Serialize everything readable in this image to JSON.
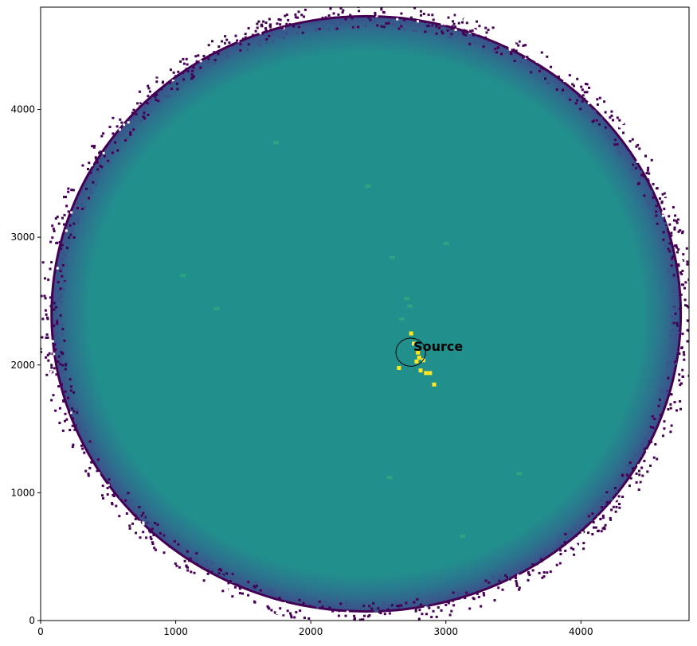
{
  "chart_data": {
    "type": "heatmap",
    "title": "",
    "xlabel": "",
    "ylabel": "",
    "xlim": [
      0,
      4800
    ],
    "ylim": [
      0,
      4800
    ],
    "colormap": "viridis",
    "grid": false,
    "x_ticks": [
      {
        "value": 0,
        "label": "0"
      },
      {
        "value": 1000,
        "label": "1000"
      },
      {
        "value": 2000,
        "label": "2000"
      },
      {
        "value": 3000,
        "label": "3000"
      },
      {
        "value": 4000,
        "label": "4000"
      }
    ],
    "y_ticks": [
      {
        "value": 0,
        "label": "0"
      },
      {
        "value": 1000,
        "label": "1000"
      },
      {
        "value": 2000,
        "label": "2000"
      },
      {
        "value": 3000,
        "label": "3000"
      },
      {
        "value": 4000,
        "label": "4000"
      }
    ],
    "detector_field": {
      "shape": "circle",
      "center": [
        2410,
        2400
      ],
      "radius": 2320,
      "fill_color": "#21908d",
      "edge_color": "#3b528b",
      "outer_edge_color": "#440154"
    },
    "bright_pixels": [
      {
        "x": 2740,
        "y": 2250
      },
      {
        "x": 2760,
        "y": 2170
      },
      {
        "x": 2790,
        "y": 2100
      },
      {
        "x": 2800,
        "y": 2060
      },
      {
        "x": 2780,
        "y": 2030
      },
      {
        "x": 2830,
        "y": 2040
      },
      {
        "x": 2810,
        "y": 1960
      },
      {
        "x": 2850,
        "y": 1940
      },
      {
        "x": 2880,
        "y": 1940
      },
      {
        "x": 2910,
        "y": 1850
      },
      {
        "x": 2650,
        "y": 1980
      }
    ],
    "faint_pixels": [
      {
        "x": 2710,
        "y": 2520
      },
      {
        "x": 2730,
        "y": 2460
      },
      {
        "x": 2670,
        "y": 2360
      },
      {
        "x": 2600,
        "y": 2840
      },
      {
        "x": 3000,
        "y": 2950
      },
      {
        "x": 2420,
        "y": 3400
      },
      {
        "x": 1740,
        "y": 3740
      },
      {
        "x": 1300,
        "y": 2440
      },
      {
        "x": 2580,
        "y": 1120
      },
      {
        "x": 3120,
        "y": 660
      },
      {
        "x": 3540,
        "y": 1150
      },
      {
        "x": 1050,
        "y": 2700
      }
    ],
    "annotations": [
      {
        "type": "circle",
        "x": 2740,
        "y": 2100,
        "radius": 110,
        "color": "#000000"
      },
      {
        "type": "text",
        "x": 2760,
        "y": 2110,
        "text": "Source",
        "color": "#000000"
      }
    ]
  }
}
